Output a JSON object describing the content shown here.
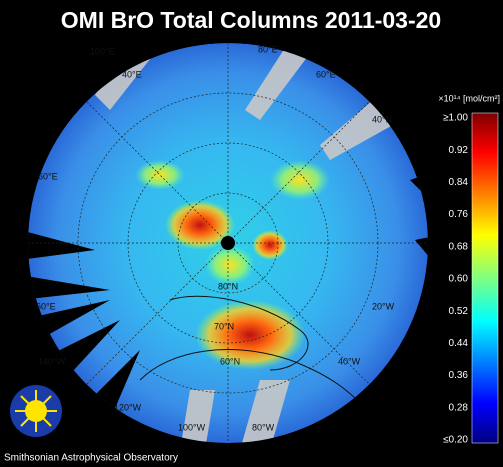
{
  "header": {
    "title": "OMI BrO Total Columns 2011-03-20"
  },
  "colorbar": {
    "unit": "×10¹⁴ [mol/cm²]",
    "ticks": [
      "≥1.00",
      "0.92",
      "0.84",
      "0.76",
      "0.68",
      "0.60",
      "0.52",
      "0.44",
      "0.36",
      "0.28",
      "≤0.20"
    ]
  },
  "map": {
    "labels": [
      "100°E",
      "80°E",
      "40°E",
      "60°E",
      "40°N",
      "60°E",
      "80°N",
      "20°W",
      "60°E",
      "70°N",
      "60°N",
      "40°W",
      "140°W",
      "120°W",
      "100°W",
      "80°W"
    ]
  },
  "footer": {
    "credit": "Smithsonian Astrophysical Observatory"
  }
}
